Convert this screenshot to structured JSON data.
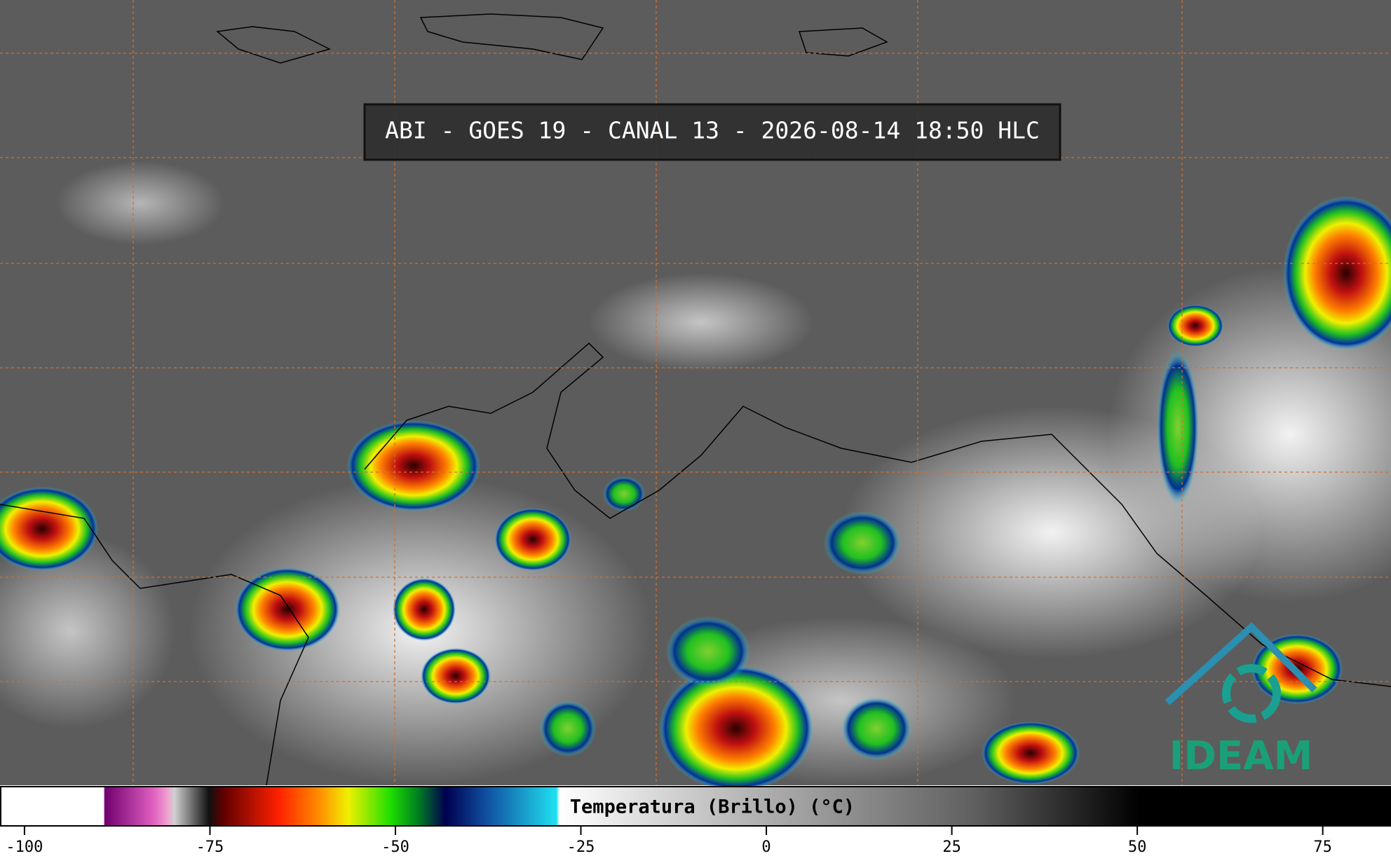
{
  "map": {
    "title": "ABI - GOES 19 - CANAL 13 - 2026-08-14 18:50 HLC",
    "logo": "IDEAM"
  },
  "colorbar": {
    "label": "Temperatura (Brillo) (°C)",
    "range": [
      -103.3,
      84.2
    ],
    "ticks": [
      -100,
      -75,
      -50,
      -25,
      0,
      25,
      50,
      75
    ]
  }
}
